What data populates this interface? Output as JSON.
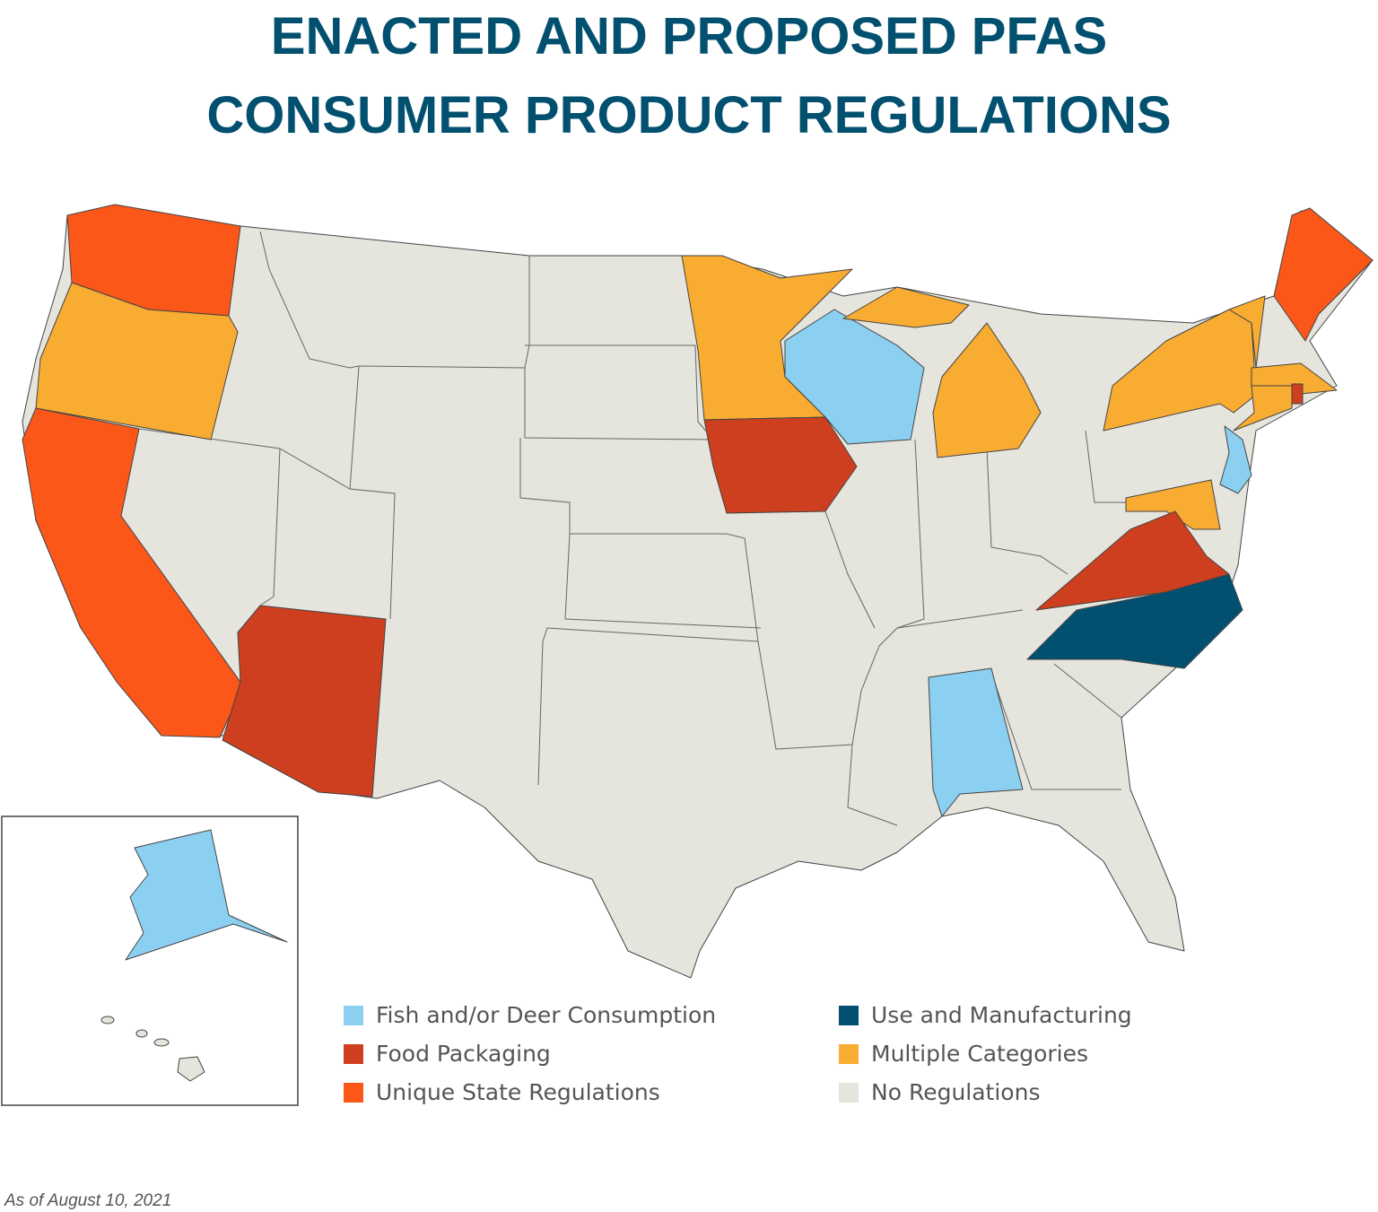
{
  "header": {
    "title_lines": [
      "ENACTED AND PROPOSED PFAS",
      "CONSUMER PRODUCT REGULATIONS"
    ]
  },
  "legend": {
    "items": [
      {
        "label": "Fish and/or Deer Consumption",
        "color": "#8bd0f1"
      },
      {
        "label": "Food Packaging",
        "color": "#cd3f1e"
      },
      {
        "label": "Unique State Regulations",
        "color": "#fa5719"
      },
      {
        "label": "Use and Manufacturing",
        "color": "#02506f"
      },
      {
        "label": "Multiple Categories",
        "color": "#f9ac32"
      },
      {
        "label": "No Regulations",
        "color": "#e5e4dd"
      }
    ]
  },
  "footnote": "As of August 10, 2021"
}
